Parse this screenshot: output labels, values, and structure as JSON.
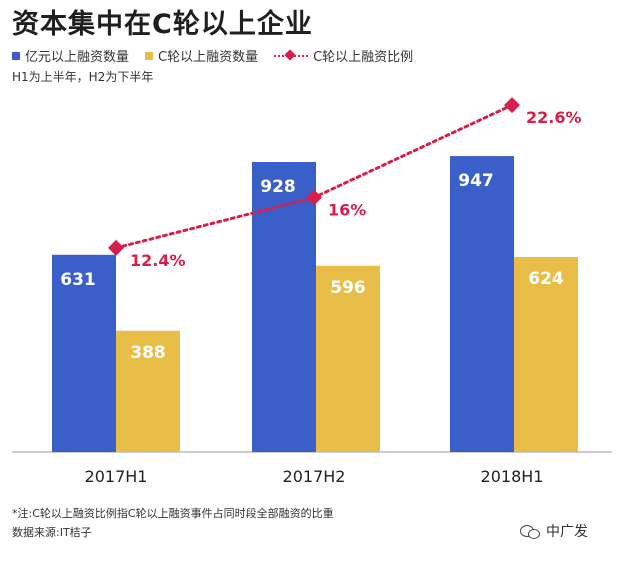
{
  "title": "资本集中在C轮以上企业",
  "legend": [
    {
      "label": "亿元以上融资数量",
      "color": "#3b5fc9"
    },
    {
      "label": "C轮以上融资数量",
      "color": "#e8bd48"
    },
    {
      "label": "C轮以上融资比例",
      "color": "#d6204b"
    }
  ],
  "note_top": "H1为上半年，H2为下半年",
  "footnote": "*注:C轮以上融资比例指C轮以上融资事件占同时段全部融资的比重",
  "source": "数据来源:IT桔子",
  "brand": "中广发",
  "colors": {
    "blue": "#3b5fc9",
    "yellow": "#e8bd48",
    "red": "#d6204b"
  },
  "chart_data": {
    "type": "bar",
    "categories": [
      "2017H1",
      "2017H2",
      "2018H1"
    ],
    "series": [
      {
        "name": "亿元以上融资数量",
        "values": [
          631,
          928,
          947
        ],
        "labels": [
          "631",
          "928",
          "947"
        ]
      },
      {
        "name": "C轮以上融资数量",
        "values": [
          388,
          596,
          624
        ],
        "labels": [
          "388",
          "596",
          "624"
        ]
      }
    ],
    "line_series": {
      "name": "C轮以上融资比例",
      "values": [
        12.4,
        16,
        22.6
      ],
      "labels": [
        "12.4%",
        "16%",
        "22.6%"
      ]
    },
    "grid": false
  }
}
